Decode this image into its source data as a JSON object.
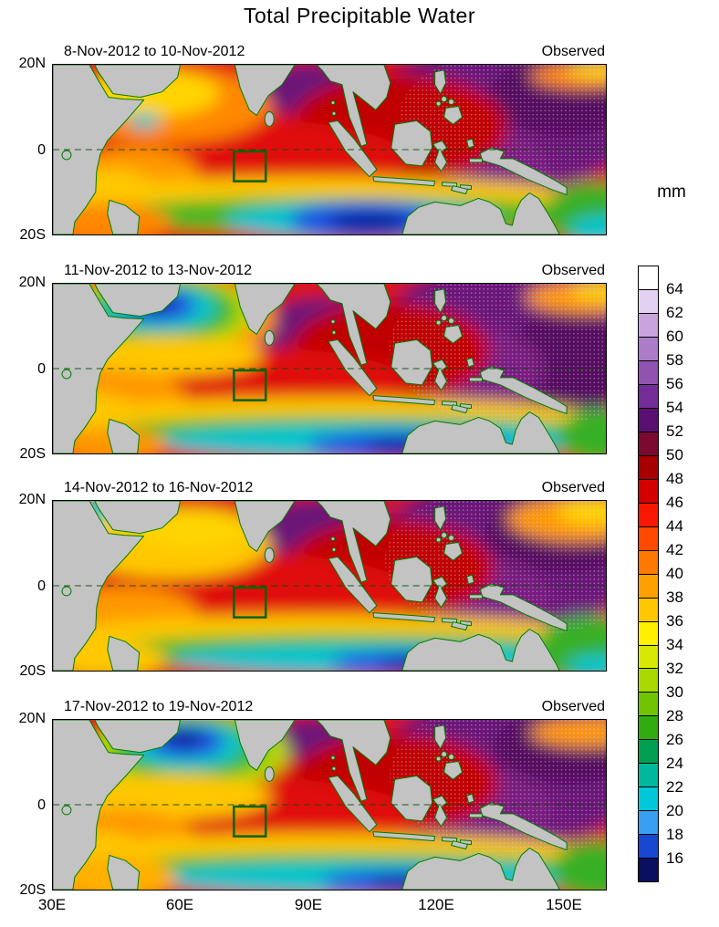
{
  "title": "Total Precipitable Water",
  "panels": [
    {
      "date_range": "8-Nov-2012 to 10-Nov-2012",
      "source_label": "Observed"
    },
    {
      "date_range": "11-Nov-2012 to 13-Nov-2012",
      "source_label": "Observed"
    },
    {
      "date_range": "14-Nov-2012 to 16-Nov-2012",
      "source_label": "Observed"
    },
    {
      "date_range": "17-Nov-2012 to 19-Nov-2012",
      "source_label": "Observed"
    }
  ],
  "axes": {
    "y_tick_labels": [
      "20N",
      "0",
      "20S"
    ],
    "x_tick_labels": [
      "30E",
      "60E",
      "90E",
      "120E",
      "150E"
    ]
  },
  "colorbar": {
    "unit": "mm",
    "tick_labels": [
      "64",
      "62",
      "60",
      "58",
      "56",
      "54",
      "52",
      "50",
      "48",
      "46",
      "44",
      "42",
      "40",
      "38",
      "36",
      "34",
      "32",
      "30",
      "28",
      "26",
      "24",
      "22",
      "20",
      "18",
      "16"
    ],
    "cell_colors_top_to_bottom": [
      "#ffffff",
      "#e4d0f0",
      "#c8a4dc",
      "#ac7cc8",
      "#9054b0",
      "#742c98",
      "#5a1070",
      "#7c0a30",
      "#a80000",
      "#d40000",
      "#f81800",
      "#ff4800",
      "#ff7800",
      "#ffa000",
      "#ffc800",
      "#fff000",
      "#d8e800",
      "#a8d800",
      "#70c400",
      "#30ac10",
      "#00a050",
      "#00b89c",
      "#00c8d8",
      "#38a0f0",
      "#1848d0",
      "#0a0f60"
    ]
  },
  "chart_data": {
    "type": "heatmap",
    "title": "Total Precipitable Water",
    "variable": "total precipitable water",
    "units": "mm",
    "lon_range_deg_east": [
      30,
      160
    ],
    "lat_range_deg": [
      -20,
      20
    ],
    "x_ticks": [
      "30E",
      "60E",
      "90E",
      "120E",
      "150E"
    ],
    "y_ticks": [
      "20N",
      "0",
      "20S"
    ],
    "colorbar_levels_mm": [
      16,
      18,
      20,
      22,
      24,
      26,
      28,
      30,
      32,
      34,
      36,
      38,
      40,
      42,
      44,
      46,
      48,
      50,
      52,
      54,
      56,
      58,
      60,
      62,
      64
    ],
    "colorbar_colors_low_to_high": [
      "#0a0f60",
      "#1848d0",
      "#38a0f0",
      "#00c8d8",
      "#00b89c",
      "#00a050",
      "#30ac10",
      "#70c400",
      "#a8d800",
      "#d8e800",
      "#fff000",
      "#ffc800",
      "#ffa000",
      "#ff7800",
      "#ff4800",
      "#f81800",
      "#d40000",
      "#a80000",
      "#7c0a30",
      "#5a1070",
      "#742c98",
      "#9054b0",
      "#ac7cc8",
      "#c8a4dc",
      "#e4d0f0",
      "#ffffff"
    ],
    "highlight_box": {
      "lon_deg_east": [
        72.5,
        80
      ],
      "lat_deg": [
        -7.5,
        -0.5
      ],
      "description": "green outlined study region drawn in every panel just south of the equator"
    },
    "panels": [
      {
        "label": "8-Nov-2012 to 10-Nov-2012",
        "source": "Observed",
        "features": [
          "Moist red/purple band (48-60 mm) over Bay of Bengal and western Pacific warm pool",
          "Orange/yellow (38-46 mm) over Arabian Sea and western equatorial Indian Ocean",
          "Dry blue core (<22 mm) near 95-115E, 12-20S in the southern Indian Ocean",
          "Green band (28-36 mm) along 15-18S east of 80E"
        ]
      },
      {
        "label": "11-Nov-2012 to 13-Nov-2012",
        "source": "Observed",
        "features": [
          "Dry blue/cyan patch (<26 mm) over the Arabian Sea near 50-65E, 8-18N",
          "Broad purple region (>56 mm) over the Maritime Continent and west Pacific",
          "Cyan/blue dry zone (<26 mm) along 15-20S between 85-120E",
          "Red moist band (48-54 mm) across the equatorial Indian Ocean"
        ]
      },
      {
        "label": "14-Nov-2012 to 16-Nov-2012",
        "source": "Observed",
        "features": [
          "Strong red band (50-56 mm) along the equator across the Indian Ocean",
          "Purple (>56 mm) over Bay of Bengal and western Pacific",
          "Green/cyan dry band south of 12S with blue core near 100-115E",
          "Yellow/green (34-44 mm) over western Arabian Sea"
        ]
      },
      {
        "label": "17-Nov-2012 to 19-Nov-2012",
        "source": "Observed",
        "features": [
          "Dry blue patch (<24 mm) near 55-70E, 8-18N",
          "Red moist band (48-54 mm) across the equatorial Indian Ocean including the study box",
          "Purple (>56 mm) east of 100E over the warm pool",
          "Cyan/blue dry zone along 15-20S near 90-115E"
        ]
      }
    ]
  }
}
